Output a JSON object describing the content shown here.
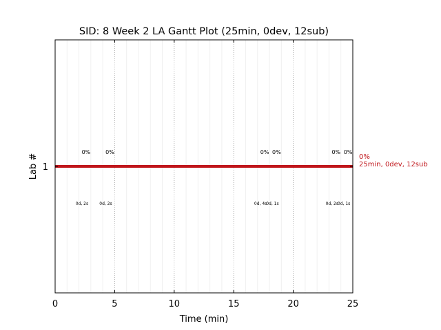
{
  "chart_data": {
    "type": "gantt",
    "title": "SID: 8 Week 2 LA Gantt Plot (25min, 0dev, 12sub)",
    "xlabel": "Time (min)",
    "ylabel": "Lab #",
    "xlim": [
      0,
      25
    ],
    "ylim": [
      0,
      2
    ],
    "x_ticks": [
      "0",
      "5",
      "10",
      "15",
      "20",
      "25"
    ],
    "x_tick_values": [
      0,
      5,
      10,
      15,
      20,
      25
    ],
    "y_ticks": [
      "1"
    ],
    "y_tick_values": [
      1
    ],
    "grid": "vertical dotted",
    "lab": {
      "y": 1,
      "start": 0,
      "end": 25,
      "color": "#c0161b",
      "summary_pct": "0%",
      "summary_text": "25min, 0dev, 12sub"
    },
    "events": [
      {
        "x": 2.6,
        "pct": "0%",
        "note": "0d, 2s"
      },
      {
        "x": 4.6,
        "pct": "0%",
        "note": "0d, 2s"
      },
      {
        "x": 17.6,
        "pct": "0%",
        "note": "0d, 4s"
      },
      {
        "x": 18.6,
        "pct": "0%",
        "note": "0d, 1s"
      },
      {
        "x": 23.6,
        "pct": "0%",
        "note": "0d, 2s"
      },
      {
        "x": 24.6,
        "pct": "0%",
        "note": "0d, 1s"
      }
    ]
  }
}
